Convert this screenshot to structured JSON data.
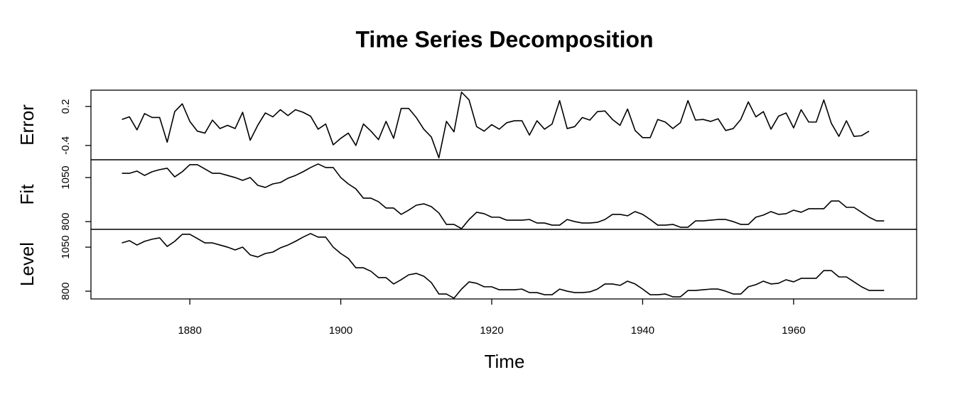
{
  "chart_data": {
    "type": "line",
    "title": "Time Series Decomposition",
    "x_label": "Time",
    "xlim": [
      1866.9,
      1976.3
    ],
    "xticks": [
      1880,
      1900,
      1920,
      1940,
      1960
    ],
    "panels": [
      {
        "y_label": "Error",
        "color": "#000000",
        "ylim": [
          -0.62,
          0.45
        ],
        "yticks": [
          -0.4,
          0.2
        ],
        "x": [
          1871,
          1872,
          1873,
          1874,
          1875,
          1876,
          1877,
          1878,
          1879,
          1880,
          1881,
          1882,
          1883,
          1884,
          1885,
          1886,
          1887,
          1888,
          1889,
          1890,
          1891,
          1892,
          1893,
          1894,
          1895,
          1896,
          1897,
          1898,
          1899,
          1900,
          1901,
          1902,
          1903,
          1904,
          1905,
          1906,
          1907,
          1908,
          1909,
          1910,
          1911,
          1912,
          1913,
          1914,
          1915,
          1916,
          1917,
          1918,
          1919,
          1920,
          1921,
          1922,
          1923,
          1924,
          1925,
          1926,
          1927,
          1928,
          1929,
          1930,
          1931,
          1932,
          1933,
          1934,
          1935,
          1936,
          1937,
          1938,
          1939,
          1940,
          1941,
          1942,
          1943,
          1944,
          1945,
          1946,
          1947,
          1948,
          1949,
          1950,
          1951,
          1952,
          1953,
          1954,
          1955,
          1956,
          1957,
          1958,
          1959,
          1960,
          1961,
          1962,
          1963,
          1964,
          1965,
          1966,
          1967,
          1968,
          1969,
          1970
        ],
        "values": [
          0.0,
          0.04,
          -0.16,
          0.09,
          0.03,
          0.03,
          -0.35,
          0.12,
          0.24,
          -0.03,
          -0.18,
          -0.21,
          -0.01,
          -0.14,
          -0.09,
          -0.14,
          0.11,
          -0.32,
          -0.09,
          0.1,
          0.04,
          0.15,
          0.06,
          0.15,
          0.11,
          0.05,
          -0.15,
          -0.07,
          -0.39,
          -0.29,
          -0.21,
          -0.4,
          -0.07,
          -0.18,
          -0.31,
          -0.03,
          -0.29,
          0.17,
          0.17,
          0.03,
          -0.15,
          -0.27,
          -0.59,
          -0.03,
          -0.19,
          0.42,
          0.3,
          -0.11,
          -0.18,
          -0.08,
          -0.15,
          -0.05,
          -0.02,
          -0.02,
          -0.24,
          -0.02,
          -0.15,
          -0.07,
          0.29,
          -0.14,
          -0.11,
          0.03,
          -0.01,
          0.12,
          0.13,
          0.0,
          -0.09,
          0.16,
          -0.17,
          -0.28,
          -0.28,
          0.0,
          -0.04,
          -0.14,
          -0.05,
          0.29,
          -0.01,
          0.0,
          -0.03,
          0.01,
          -0.17,
          -0.14,
          0.0,
          0.27,
          0.04,
          0.12,
          -0.15,
          0.05,
          0.1,
          -0.13,
          0.15,
          -0.04,
          -0.04,
          0.3,
          -0.06,
          -0.26,
          -0.02,
          -0.26,
          -0.25,
          -0.18
        ]
      },
      {
        "y_label": "Fit",
        "color": "#000000",
        "ylim": [
          756,
          1151
        ],
        "yticks": [
          800,
          1050
        ],
        "x": [
          1871,
          1872,
          1873,
          1874,
          1875,
          1876,
          1877,
          1878,
          1879,
          1880,
          1881,
          1882,
          1883,
          1884,
          1885,
          1886,
          1887,
          1888,
          1889,
          1890,
          1891,
          1892,
          1893,
          1894,
          1895,
          1896,
          1897,
          1898,
          1899,
          1900,
          1901,
          1902,
          1903,
          1904,
          1905,
          1906,
          1907,
          1908,
          1909,
          1910,
          1911,
          1912,
          1913,
          1914,
          1915,
          1916,
          1917,
          1918,
          1919,
          1920,
          1921,
          1922,
          1923,
          1924,
          1925,
          1926,
          1927,
          1928,
          1929,
          1930,
          1931,
          1932,
          1933,
          1934,
          1935,
          1936,
          1937,
          1938,
          1939,
          1940,
          1941,
          1942,
          1943,
          1944,
          1945,
          1946,
          1947,
          1948,
          1949,
          1950,
          1951,
          1952,
          1953,
          1954,
          1955,
          1956,
          1957,
          1958,
          1959,
          1960,
          1961,
          1962,
          1963,
          1964,
          1965,
          1966,
          1967,
          1968,
          1969,
          1970,
          1971,
          1972
        ],
        "values": [
          1074,
          1074,
          1087,
          1062,
          1083,
          1095,
          1103,
          1054,
          1083,
          1123,
          1123,
          1099,
          1074,
          1074,
          1062,
          1050,
          1034,
          1050,
          1006,
          994,
          1014,
          1022,
          1046,
          1062,
          1083,
          1107,
          1127,
          1107,
          1107,
          1050,
          1014,
          986,
          933,
          933,
          913,
          877,
          877,
          841,
          865,
          893,
          901,
          885,
          849,
          784,
          784,
          760,
          812,
          853,
          845,
          825,
          825,
          808,
          808,
          808,
          812,
          792,
          792,
          780,
          780,
          812,
          800,
          792,
          792,
          796,
          812,
          841,
          841,
          833,
          857,
          841,
          812,
          780,
          780,
          784,
          768,
          768,
          804,
          804,
          808,
          812,
          812,
          800,
          784,
          784,
          825,
          837,
          857,
          841,
          845,
          865,
          853,
          873,
          873,
          873,
          917,
          917,
          881,
          881,
          853,
          825,
          804,
          804
        ]
      },
      {
        "y_label": "Level",
        "color": "#000000",
        "ylim": [
          756,
          1151
        ],
        "yticks": [
          800,
          1050
        ],
        "x": [
          1871,
          1872,
          1873,
          1874,
          1875,
          1876,
          1877,
          1878,
          1879,
          1880,
          1881,
          1882,
          1883,
          1884,
          1885,
          1886,
          1887,
          1888,
          1889,
          1890,
          1891,
          1892,
          1893,
          1894,
          1895,
          1896,
          1897,
          1898,
          1899,
          1900,
          1901,
          1902,
          1903,
          1904,
          1905,
          1906,
          1907,
          1908,
          1909,
          1910,
          1911,
          1912,
          1913,
          1914,
          1915,
          1916,
          1917,
          1918,
          1919,
          1920,
          1921,
          1922,
          1923,
          1924,
          1925,
          1926,
          1927,
          1928,
          1929,
          1930,
          1931,
          1932,
          1933,
          1934,
          1935,
          1936,
          1937,
          1938,
          1939,
          1940,
          1941,
          1942,
          1943,
          1944,
          1945,
          1946,
          1947,
          1948,
          1949,
          1950,
          1951,
          1952,
          1953,
          1954,
          1955,
          1956,
          1957,
          1958,
          1959,
          1960,
          1961,
          1962,
          1963,
          1964,
          1965,
          1966,
          1967,
          1968,
          1969,
          1970,
          1971,
          1972
        ],
        "values": [
          1074,
          1087,
          1062,
          1083,
          1095,
          1103,
          1054,
          1083,
          1123,
          1123,
          1099,
          1074,
          1074,
          1062,
          1050,
          1034,
          1050,
          1006,
          994,
          1014,
          1022,
          1046,
          1062,
          1083,
          1107,
          1127,
          1107,
          1107,
          1050,
          1014,
          986,
          933,
          933,
          913,
          877,
          877,
          841,
          865,
          893,
          901,
          885,
          849,
          784,
          784,
          760,
          812,
          853,
          845,
          825,
          825,
          808,
          808,
          808,
          812,
          792,
          792,
          780,
          780,
          812,
          800,
          792,
          792,
          796,
          812,
          841,
          841,
          833,
          857,
          841,
          812,
          780,
          780,
          784,
          768,
          768,
          804,
          804,
          808,
          812,
          812,
          800,
          784,
          784,
          825,
          837,
          857,
          841,
          845,
          865,
          853,
          873,
          873,
          873,
          917,
          917,
          881,
          881,
          853,
          825,
          804,
          804,
          804
        ]
      }
    ]
  }
}
